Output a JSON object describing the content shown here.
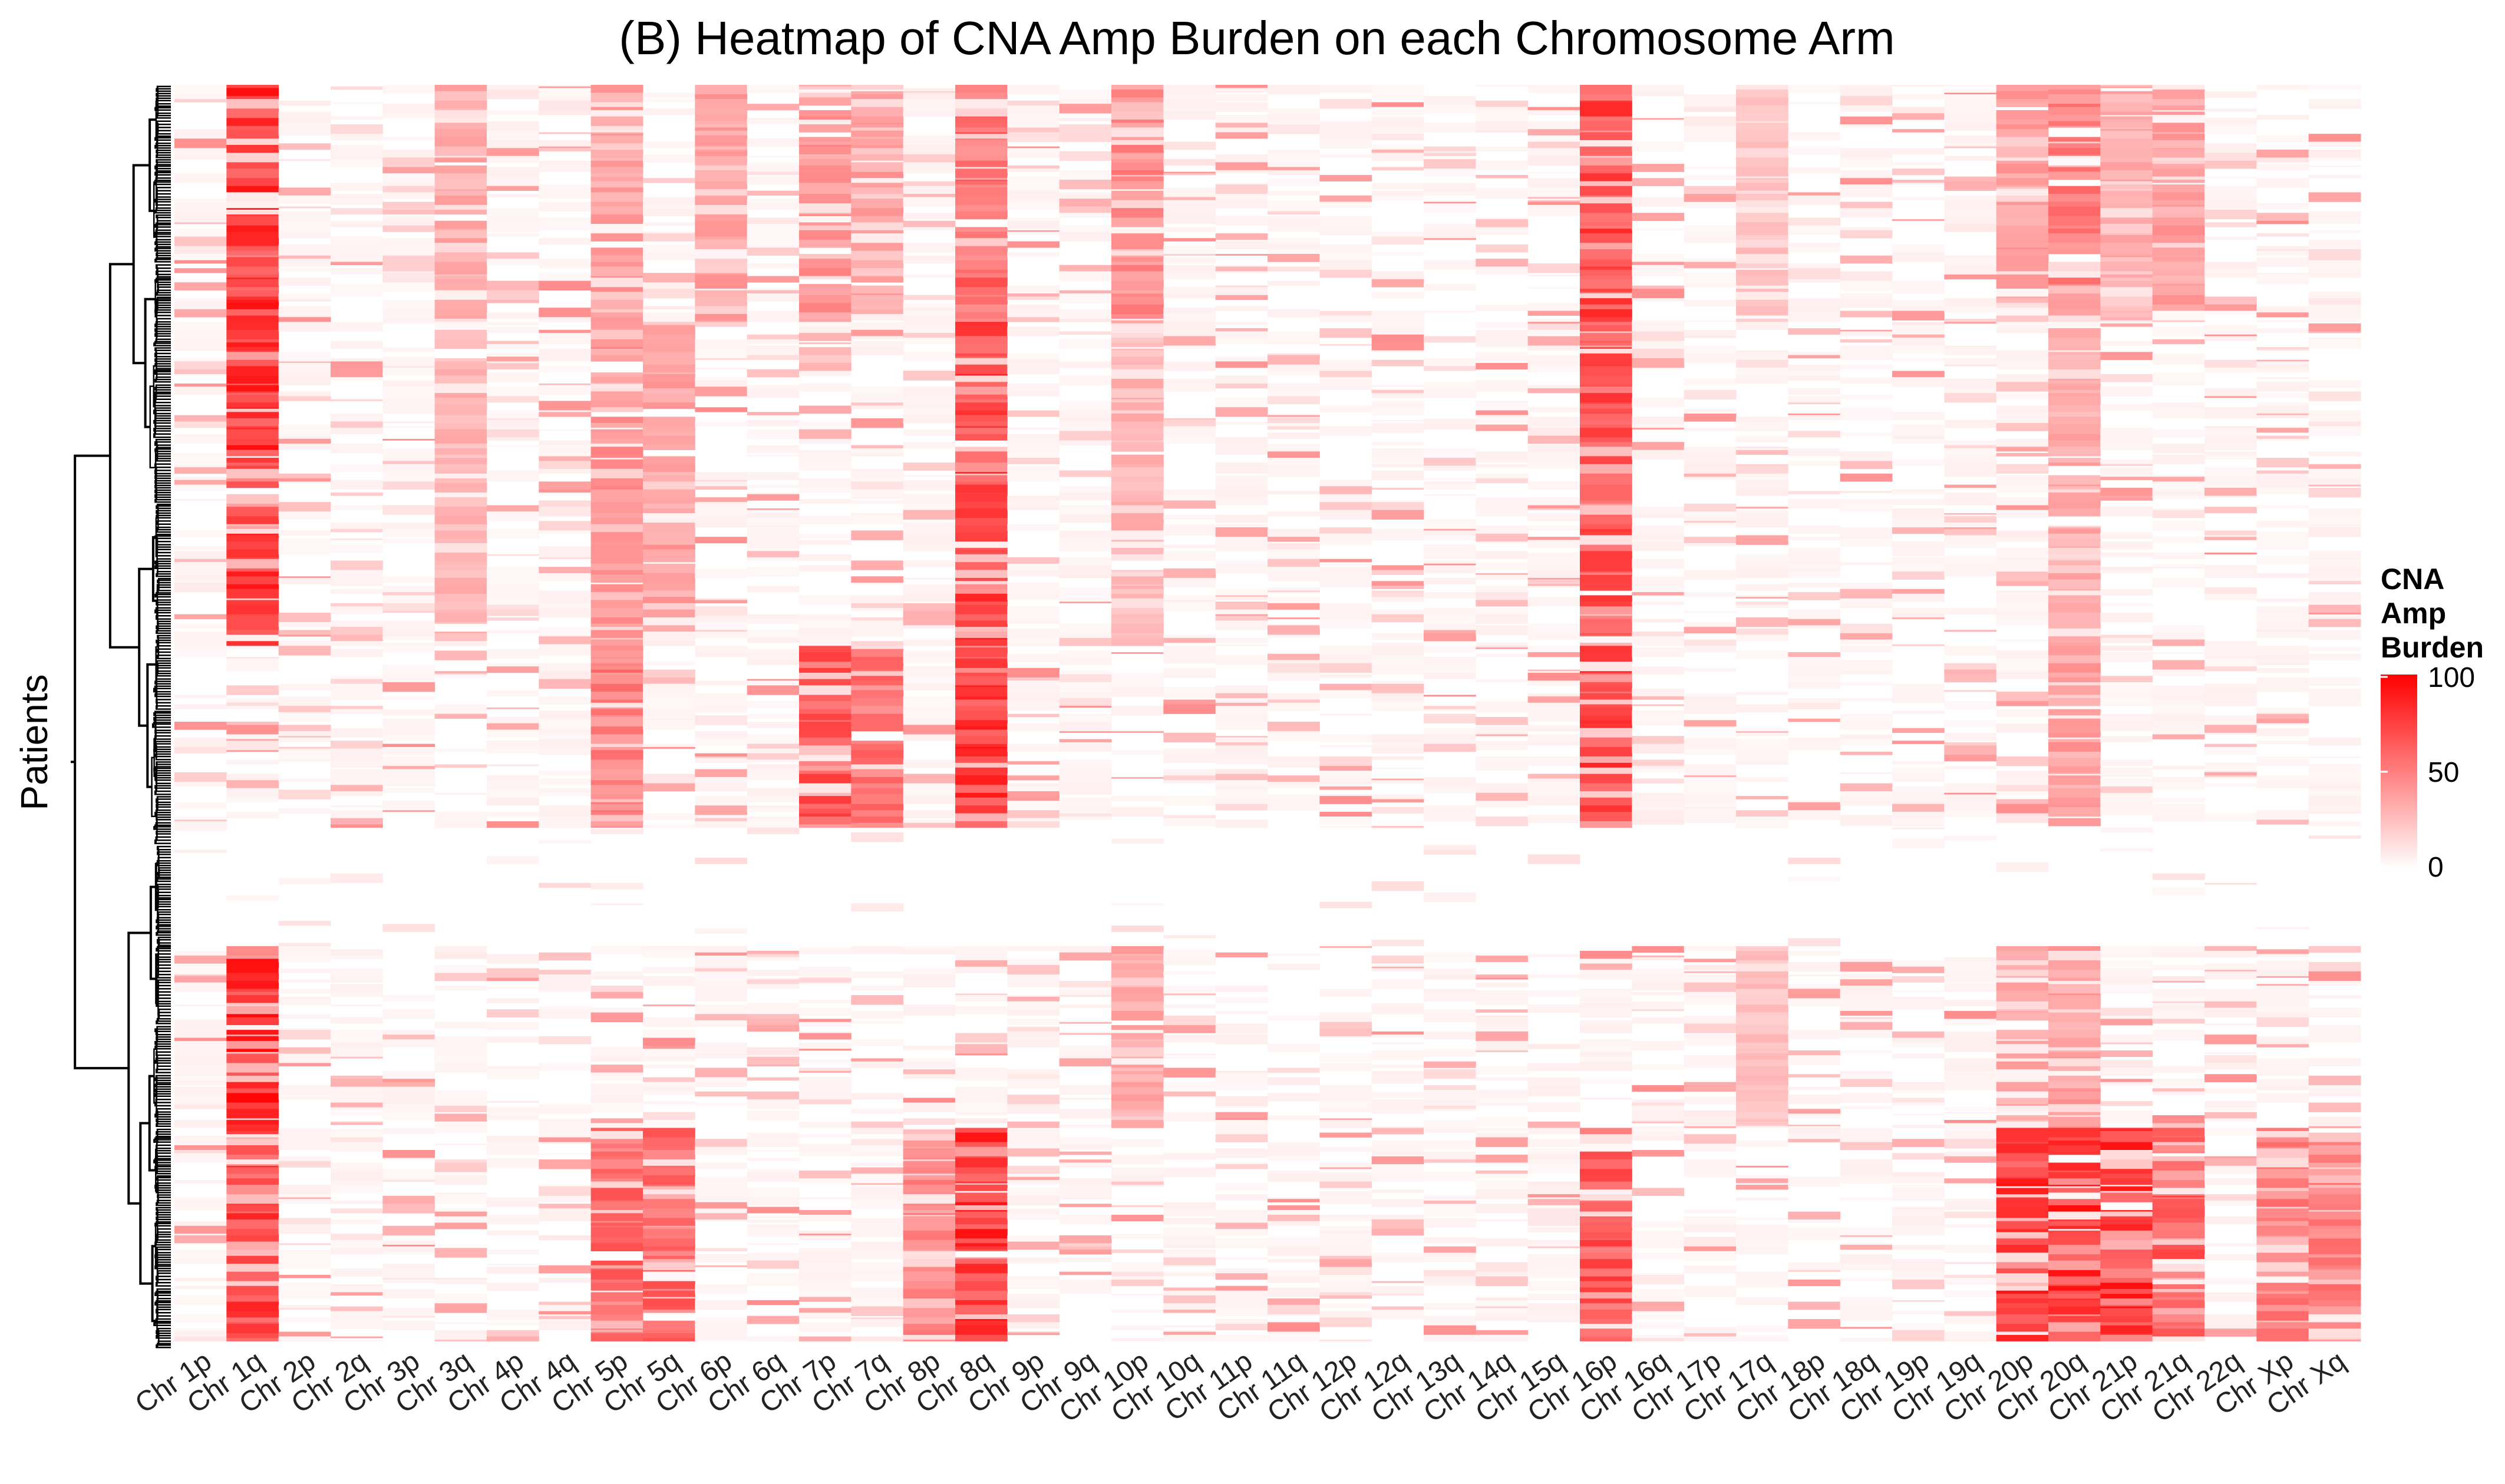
{
  "chart_data": {
    "type": "heatmap",
    "title": "(B) Heatmap of CNA Amp Burden on each Chromosome Arm",
    "xlabel": "",
    "ylabel": "Patients",
    "columns": [
      "Chr 1p",
      "Chr 1q",
      "Chr 2p",
      "Chr 2q",
      "Chr 3p",
      "Chr 3q",
      "Chr 4p",
      "Chr 4q",
      "Chr 5p",
      "Chr 5q",
      "Chr 6p",
      "Chr 6q",
      "Chr 7p",
      "Chr 7q",
      "Chr 8p",
      "Chr 8q",
      "Chr 9p",
      "Chr 9q",
      "Chr 10p",
      "Chr 10q",
      "Chr 11p",
      "Chr 11q",
      "Chr 12p",
      "Chr 12q",
      "Chr 13q",
      "Chr 14q",
      "Chr 15q",
      "Chr 16p",
      "Chr 16q",
      "Chr 17p",
      "Chr 17q",
      "Chr 18p",
      "Chr 18q",
      "Chr 19p",
      "Chr 19q",
      "Chr 20p",
      "Chr 20q",
      "Chr 21p",
      "Chr 21q",
      "Chr 22q",
      "Chr Xp",
      "Chr Xq"
    ],
    "row_count_label": "",
    "value_range": [
      0,
      100
    ],
    "legend": {
      "title_lines": [
        "CNA",
        "Amp",
        "Burden"
      ],
      "ticks": [
        "100",
        "50",
        "0"
      ],
      "tick_values": [
        100,
        50,
        0
      ],
      "low_color": "#ffffff",
      "high_color": "#ff0000",
      "placement": "right"
    },
    "row_dendrogram": true,
    "grid": false,
    "blocks": [
      {
        "rows": [
          0,
          150
        ],
        "cols": {
          "Chr 1q": 95,
          "Chr 3q": 40,
          "Chr 5p": 45,
          "Chr 6p": 45,
          "Chr 7p": 50,
          "Chr 7q": 45,
          "Chr 8q": 70,
          "Chr 10p": 55,
          "Chr 16p": 85,
          "Chr 17q": 30,
          "Chr 20p": 45,
          "Chr 20q": 60,
          "Chr 21p": 40,
          "Chr 21q": 45
        }
      },
      {
        "rows": [
          150,
          355
        ],
        "cols": {
          "Chr 1q": 95,
          "Chr 3q": 35,
          "Chr 5p": 50,
          "Chr 5q": 45,
          "Chr 8q": 90,
          "Chr 10p": 35,
          "Chr 16p": 80,
          "Chr 20q": 40
        }
      },
      {
        "rows": [
          355,
          470
        ],
        "cols": {
          "Chr 7p": 80,
          "Chr 7q": 65,
          "Chr 8q": 95,
          "Chr 16p": 90,
          "Chr 20q": 45,
          "Chr 5p": 60
        }
      },
      {
        "rows": [
          470,
          545
        ],
        "cols": {}
      },
      {
        "rows": [
          545,
          660
        ],
        "cols": {
          "Chr 1q": 98,
          "Chr 10p": 40,
          "Chr 17q": 30,
          "Chr 20p": 40,
          "Chr 20q": 45
        }
      },
      {
        "rows": [
          660,
          795
        ],
        "cols": {
          "Chr 1q": 90,
          "Chr 5p": 70,
          "Chr 5q": 70,
          "Chr 8p": 55,
          "Chr 8q": 95,
          "Chr 16p": 80,
          "Chr 20p": 95,
          "Chr 20q": 95,
          "Chr 21p": 98,
          "Chr 21q": 75,
          "Chr Xp": 60,
          "Chr Xq": 60
        }
      }
    ]
  }
}
